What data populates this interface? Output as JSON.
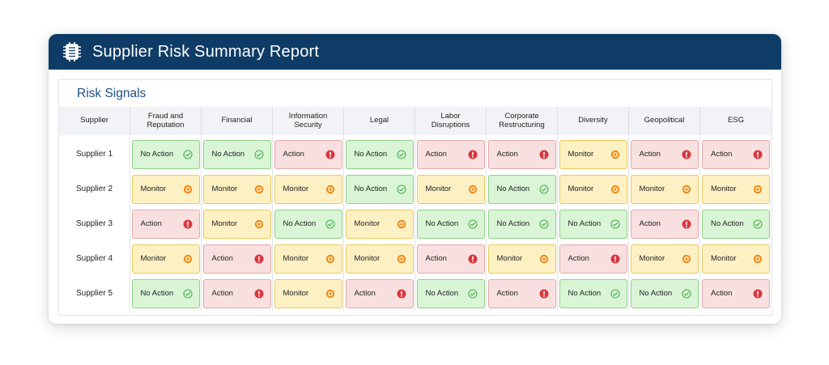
{
  "header": {
    "title": "Supplier Risk Summary Report",
    "logo_icon": "chip-icon"
  },
  "section": {
    "title": "Risk Signals"
  },
  "columns": [
    "Supplier",
    "Fraud and\nReputation",
    "Financial",
    "Information\nSecurity",
    "Legal",
    "Labor\nDisruptions",
    "Corporate\nRestructuring",
    "Diversity",
    "Geopolitical",
    "ESG"
  ],
  "status_labels": {
    "no-action": "No Action",
    "monitor": "Monitor",
    "action": "Action"
  },
  "status_colors": {
    "no-action": "#4caf50",
    "monitor": "#f08a1c",
    "action": "#d9363e"
  },
  "rows": [
    {
      "supplier": "Supplier 1",
      "statuses": [
        "no-action",
        "no-action",
        "action",
        "no-action",
        "action",
        "action",
        "monitor",
        "action",
        "action"
      ]
    },
    {
      "supplier": "Supplier 2",
      "statuses": [
        "monitor",
        "monitor",
        "monitor",
        "no-action",
        "monitor",
        "no-action",
        "monitor",
        "monitor",
        "monitor"
      ]
    },
    {
      "supplier": "Supplier 3",
      "statuses": [
        "action",
        "monitor",
        "no-action",
        "monitor",
        "no-action",
        "no-action",
        "no-action",
        "action",
        "no-action"
      ]
    },
    {
      "supplier": "Supplier 4",
      "statuses": [
        "monitor",
        "action",
        "monitor",
        "monitor",
        "action",
        "monitor",
        "action",
        "monitor",
        "monitor"
      ]
    },
    {
      "supplier": "Supplier 5",
      "statuses": [
        "no-action",
        "action",
        "monitor",
        "action",
        "no-action",
        "action",
        "no-action",
        "no-action",
        "action"
      ]
    }
  ]
}
